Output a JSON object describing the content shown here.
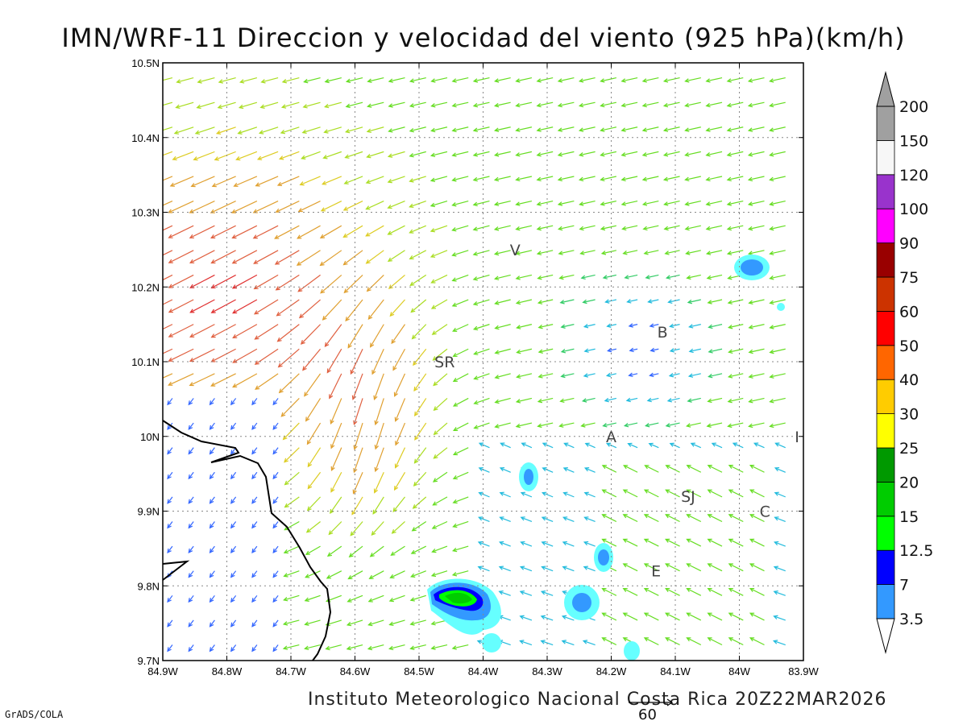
{
  "title": "IMN/WRF-11 Direccion y velocidad del viento (925 hPa)(km/h)",
  "footer": "Instituto Meteorologico Nacional Costa Rica 20Z22MAR2026",
  "software": "GrADS/COLA",
  "reference_vector": {
    "label": "60",
    "value": 60
  },
  "axes": {
    "lon_ticks": [
      "84.9W",
      "84.8W",
      "84.7W",
      "84.6W",
      "84.5W",
      "84.4W",
      "84.3W",
      "84.2W",
      "84.1W",
      "84W",
      "83.9W"
    ],
    "lat_ticks": [
      "10.5N",
      "10.4N",
      "10.3N",
      "10.2N",
      "10.1N",
      "10N",
      "9.9N",
      "9.8N",
      "9.7N"
    ],
    "lon_range": [
      -84.9,
      -83.9
    ],
    "lat_range": [
      9.7,
      10.5
    ],
    "grid": true
  },
  "locations": [
    {
      "label": "V",
      "lon": -84.35,
      "lat": 10.25
    },
    {
      "label": "B",
      "lon": -84.12,
      "lat": 10.14
    },
    {
      "label": "SR",
      "lon": -84.46,
      "lat": 10.1
    },
    {
      "label": "A",
      "lon": -84.2,
      "lat": 10.0
    },
    {
      "label": "I",
      "lon": -83.91,
      "lat": 10.0
    },
    {
      "label": "SJ",
      "lon": -84.08,
      "lat": 9.92
    },
    {
      "label": "C",
      "lon": -83.96,
      "lat": 9.9
    },
    {
      "label": "E",
      "lon": -84.13,
      "lat": 9.82
    }
  ],
  "colorbar": {
    "labels": [
      "3.5",
      "7",
      "12.5",
      "15",
      "20",
      "25",
      "30",
      "40",
      "50",
      "60",
      "75",
      "90",
      "100",
      "120",
      "150",
      "200"
    ],
    "colors": [
      "#66ffff",
      "#3399ff",
      "#0000ff",
      "#00ff00",
      "#00cc00",
      "#009900",
      "#ffff00",
      "#ffcc00",
      "#ff6600",
      "#ff0000",
      "#cc3300",
      "#990000",
      "#ff00ff",
      "#9933cc",
      "#f7f7f7",
      "#a0a0a0"
    ]
  },
  "wind_field": {
    "description_levels_kmh": [
      3.5,
      7,
      12.5,
      15,
      20,
      25,
      30,
      40,
      50,
      60
    ]
  }
}
